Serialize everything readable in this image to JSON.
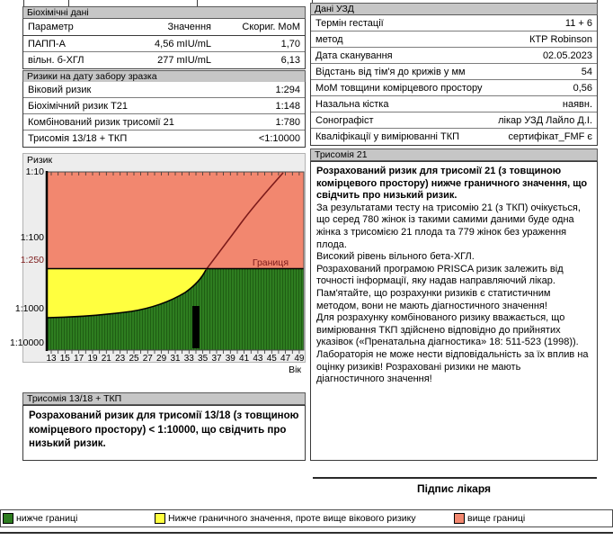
{
  "colors": {
    "green": "#2e7d20",
    "green_stripe": "#1f5e13",
    "yellow": "#ffff3f",
    "salmon": "#f2876f",
    "maroon": "#7c1a1a",
    "bar_gray": "#c6c6c6",
    "chart_bg": "#ededed"
  },
  "biochem": {
    "header": "Біохімічні дані",
    "columns": [
      "Параметр",
      "Значення",
      "Скориг. МоМ"
    ],
    "rows": [
      [
        "ПАПП-А",
        "4,56 mIU/mL",
        "1,70"
      ],
      [
        "вільн. б-ХГЛ",
        "277 mIU/mL",
        "6,13"
      ]
    ]
  },
  "risks": {
    "header": "Ризики на дату забору зразка",
    "rows": [
      [
        "Віковий ризик",
        "1:294"
      ],
      [
        "Біохімічний ризик Т21",
        "1:148"
      ],
      [
        "Комбінований ризик трисомії 21",
        "1:780"
      ],
      [
        "Трисомія 13/18 + ТКП",
        "<1:10000"
      ]
    ]
  },
  "ultrasound": {
    "header": "Дані УЗД",
    "rows": [
      [
        "Термін гестації",
        "11 + 6"
      ],
      [
        "метод",
        "КТР Robinson"
      ],
      [
        "Дата сканування",
        "02.05.2023"
      ],
      [
        "Відстань від тім'я до крижів у мм",
        "54"
      ],
      [
        "МоМ товщини комірцевого простору",
        "0,56"
      ],
      [
        "Назальна кістка",
        "наявн."
      ],
      [
        "Сонографіст",
        "лікар УЗД Лайло Д.І."
      ],
      [
        "Кваліфікації у вимірюванні ТКП",
        "сертифікат_FMF є"
      ]
    ]
  },
  "chart_data": {
    "type": "area",
    "title": "Ризик",
    "xlabel": "Вік",
    "y_ticks": [
      "1:10",
      "1:100",
      "1:250",
      "1:1000",
      "1:10000"
    ],
    "x_ticks": [
      "13",
      "15",
      "17",
      "19",
      "21",
      "23",
      "25",
      "27",
      "29",
      "31",
      "33",
      "35",
      "37",
      "39",
      "41",
      "43",
      "45",
      "47",
      "49"
    ],
    "x_range": [
      13,
      50
    ],
    "cutoff_label": "Границя",
    "cutoff_value": "1:250",
    "series": [
      {
        "name": "віковий ризик",
        "x": [
          13,
          20,
          25,
          28,
          31,
          33,
          35.5,
          38,
          41,
          44,
          47.5
        ],
        "risk_one_in": [
          1400,
          1350,
          1100,
          800,
          560,
          420,
          250,
          150,
          75,
          35,
          10
        ]
      }
    ],
    "marker": {
      "age": 34.5,
      "risk_top": "1:780"
    },
    "zones": [
      "вище границі (червона)",
      "нижче граничного значення, проте вище вікового ризику (жовта)",
      "нижче границі (зелена)"
    ]
  },
  "trisomy21": {
    "header": "Трисомія 21",
    "paragraphs": [
      {
        "bold": true,
        "text": "Розрахований ризик для трисомії 21 (з товщиною комірцевого простору) нижче граничного значення, що свідчить про низький ризик."
      },
      {
        "bold": false,
        "text": "За результатами тесту на трисомію 21 (з ТКП) очікується, що серед 780 жінок із такими самими даними буде одна жінка з трисомією 21 плода та 779 жінок без ураження плода."
      },
      {
        "bold": false,
        "text": "Високий рівень вільного бета-ХГЛ."
      },
      {
        "bold": false,
        "text": "Розрахований програмою PRISCA ризик залежить від точності інформації, яку надав направляючий лікар."
      },
      {
        "bold": false,
        "text": "Пам'ятайте, що розрахунки ризиків є статистичним методом, вони не мають діагностичного значення!"
      },
      {
        "bold": false,
        "text": "Для розрахунку комбінованого ризику вважається, що вимірювання ТКП здійснено відповідно до прийнятих указівок («Пренатальна діагностика» 18: 511-523 (1998))."
      },
      {
        "bold": false,
        "text": "Лабораторія не може нести відповідальність за їх вплив на оцінку ризиків! Розраховані ризики не мають діагностичного значення!"
      }
    ]
  },
  "trisomy1318": {
    "header": "Трисомія 13/18 + ТКП",
    "text": "Розрахований ризик для трисомії 13/18 (з товщиною комірцевого простору) < 1:10000, що свідчить про низький ризик."
  },
  "signature_label": "Підпис лікаря",
  "legend": [
    {
      "color": "#2e7d20",
      "label": "нижче границі"
    },
    {
      "color": "#ffff3f",
      "label": "Нижче граничного значення, проте вище вікового ризику"
    },
    {
      "color": "#f2876f",
      "label": "вище границі"
    }
  ]
}
